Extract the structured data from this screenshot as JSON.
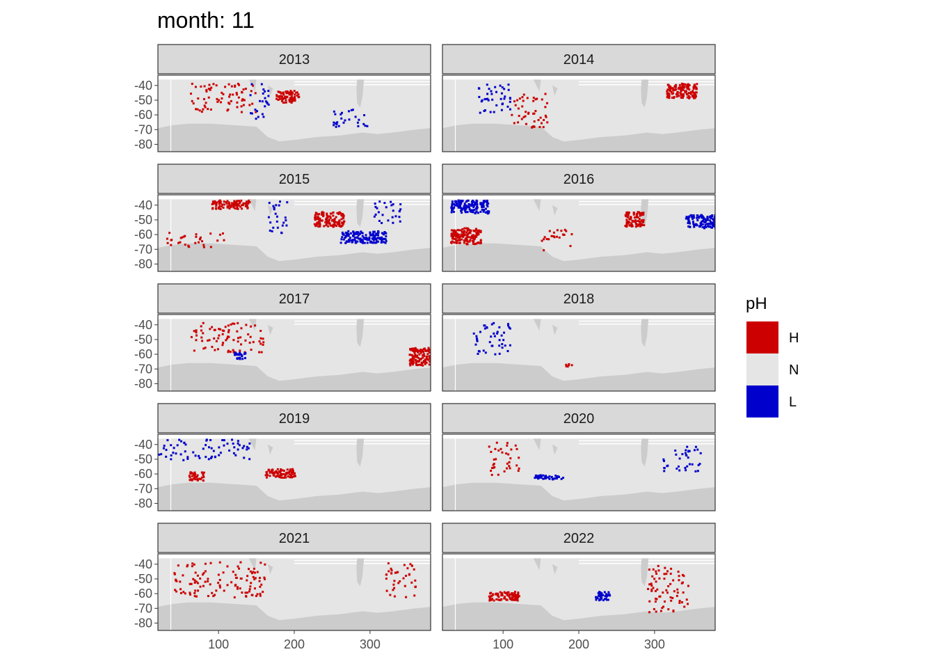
{
  "chart_data": {
    "type": "heatmap",
    "title": "month: 11",
    "xlabel": "",
    "ylabel": "",
    "facet_by": "year",
    "facets": [
      "2013",
      "2014",
      "2015",
      "2016",
      "2017",
      "2018",
      "2019",
      "2020",
      "2021",
      "2022"
    ],
    "layout": {
      "rows": 5,
      "cols": 2
    },
    "xlim": [
      20,
      380
    ],
    "ylim": [
      -85,
      -33
    ],
    "x_ticks": [
      100,
      200,
      300
    ],
    "x_tick_labels": [
      "100",
      "200",
      "300"
    ],
    "y_ticks": [
      -40,
      -50,
      -60,
      -70,
      -80
    ],
    "y_tick_labels": [
      "-40",
      "-50",
      "-60",
      "-70",
      "-80"
    ],
    "legend": {
      "title": "pH",
      "position": "right",
      "entries": [
        {
          "label": "H",
          "color": "#CC0000"
        },
        {
          "label": "N",
          "color": "#E5E5E5"
        },
        {
          "label": "L",
          "color": "#0000CC"
        }
      ]
    },
    "colors": {
      "ocean_normal": "#E5E5E5",
      "land": "#CCCCCC",
      "strip": "#D9D9D9",
      "panel_border": "#333333"
    },
    "anomaly_regions": [
      {
        "year": "2013",
        "category": "H",
        "lon": [
          175,
          205
        ],
        "lat": [
          -43,
          -51
        ]
      },
      {
        "year": "2013",
        "category": "H",
        "lon": [
          60,
          150
        ],
        "lat": [
          -38,
          -58
        ]
      },
      {
        "year": "2013",
        "category": "L",
        "lon": [
          140,
          165
        ],
        "lat": [
          -38,
          -62
        ]
      },
      {
        "year": "2013",
        "category": "L",
        "lon": [
          250,
          300
        ],
        "lat": [
          -55,
          -68
        ]
      },
      {
        "year": "2014",
        "category": "L",
        "lon": [
          60,
          110
        ],
        "lat": [
          -38,
          -58
        ]
      },
      {
        "year": "2014",
        "category": "H",
        "lon": [
          110,
          160
        ],
        "lat": [
          -45,
          -68
        ]
      },
      {
        "year": "2014",
        "category": "H",
        "lon": [
          315,
          355
        ],
        "lat": [
          -38,
          -48
        ]
      },
      {
        "year": "2015",
        "category": "H",
        "lon": [
          90,
          140
        ],
        "lat": [
          -36,
          -42
        ]
      },
      {
        "year": "2015",
        "category": "L",
        "lon": [
          165,
          190
        ],
        "lat": [
          -36,
          -60
        ]
      },
      {
        "year": "2015",
        "category": "H",
        "lon": [
          225,
          265
        ],
        "lat": [
          -44,
          -54
        ]
      },
      {
        "year": "2015",
        "category": "L",
        "lon": [
          260,
          320
        ],
        "lat": [
          -57,
          -65
        ]
      },
      {
        "year": "2015",
        "category": "L",
        "lon": [
          300,
          340
        ],
        "lat": [
          -36,
          -52
        ]
      },
      {
        "year": "2015",
        "category": "H",
        "lon": [
          30,
          110
        ],
        "lat": [
          -58,
          -68
        ]
      },
      {
        "year": "2016",
        "category": "H",
        "lon": [
          30,
          70
        ],
        "lat": [
          -55,
          -66
        ]
      },
      {
        "year": "2016",
        "category": "H",
        "lon": [
          150,
          190
        ],
        "lat": [
          -56,
          -70
        ]
      },
      {
        "year": "2016",
        "category": "H",
        "lon": [
          260,
          285
        ],
        "lat": [
          -44,
          -54
        ]
      },
      {
        "year": "2016",
        "category": "L",
        "lon": [
          340,
          380
        ],
        "lat": [
          -46,
          -55
        ]
      },
      {
        "year": "2016",
        "category": "L",
        "lon": [
          30,
          80
        ],
        "lat": [
          -36,
          -45
        ]
      },
      {
        "year": "2017",
        "category": "H",
        "lon": [
          60,
          160
        ],
        "lat": [
          -38,
          -58
        ]
      },
      {
        "year": "2017",
        "category": "L",
        "lon": [
          120,
          135
        ],
        "lat": [
          -58,
          -63
        ]
      },
      {
        "year": "2017",
        "category": "H",
        "lon": [
          350,
          380
        ],
        "lat": [
          -55,
          -67
        ]
      },
      {
        "year": "2018",
        "category": "L",
        "lon": [
          60,
          110
        ],
        "lat": [
          -38,
          -60
        ]
      },
      {
        "year": "2018",
        "category": "H",
        "lon": [
          180,
          190
        ],
        "lat": [
          -66,
          -68
        ]
      },
      {
        "year": "2019",
        "category": "L",
        "lon": [
          20,
          140
        ],
        "lat": [
          -36,
          -50
        ]
      },
      {
        "year": "2019",
        "category": "H",
        "lon": [
          160,
          200
        ],
        "lat": [
          -56,
          -62
        ]
      },
      {
        "year": "2019",
        "category": "H",
        "lon": [
          60,
          80
        ],
        "lat": [
          -58,
          -64
        ]
      },
      {
        "year": "2020",
        "category": "L",
        "lon": [
          140,
          180
        ],
        "lat": [
          -60,
          -63
        ]
      },
      {
        "year": "2020",
        "category": "H",
        "lon": [
          80,
          120
        ],
        "lat": [
          -38,
          -60
        ]
      },
      {
        "year": "2020",
        "category": "L",
        "lon": [
          310,
          360
        ],
        "lat": [
          -40,
          -58
        ]
      },
      {
        "year": "2021",
        "category": "H",
        "lon": [
          320,
          360
        ],
        "lat": [
          -38,
          -62
        ]
      },
      {
        "year": "2021",
        "category": "H",
        "lon": [
          40,
          160
        ],
        "lat": [
          -38,
          -62
        ]
      },
      {
        "year": "2022",
        "category": "H",
        "lon": [
          290,
          345
        ],
        "lat": [
          -40,
          -72
        ]
      },
      {
        "year": "2022",
        "category": "L",
        "lon": [
          220,
          240
        ],
        "lat": [
          -58,
          -64
        ]
      },
      {
        "year": "2022",
        "category": "H",
        "lon": [
          80,
          120
        ],
        "lat": [
          -58,
          -64
        ]
      }
    ]
  }
}
